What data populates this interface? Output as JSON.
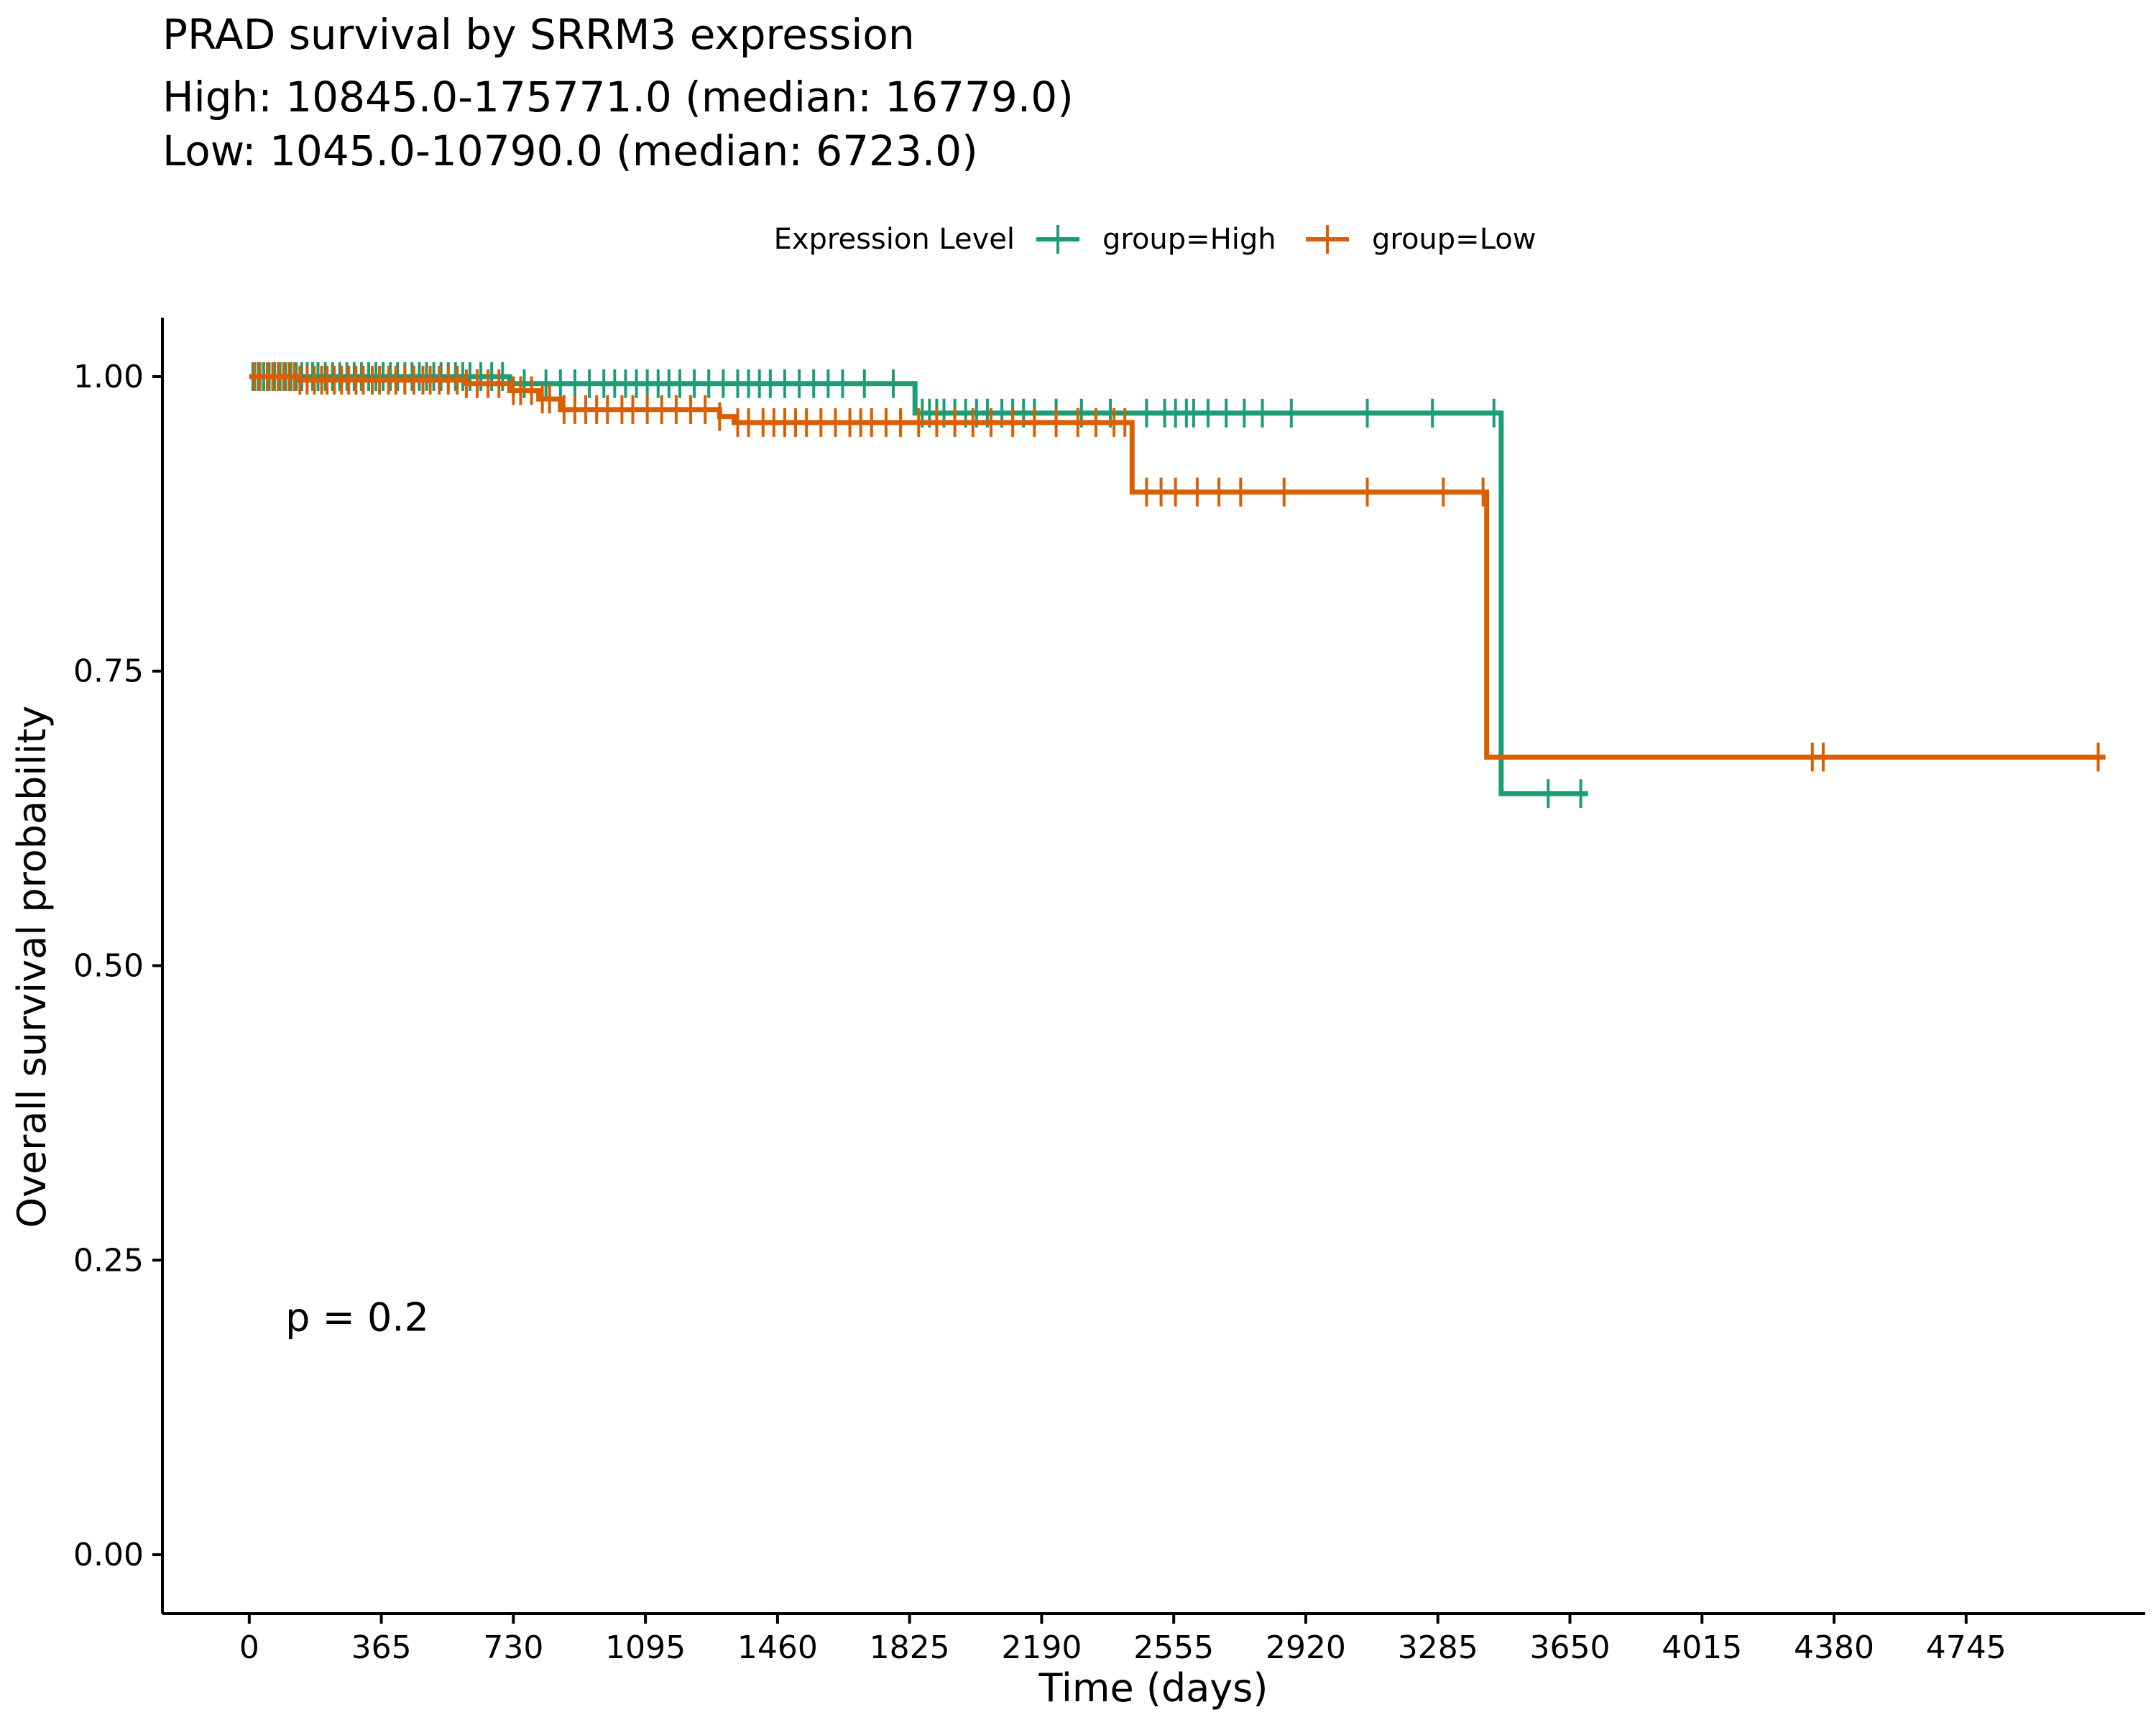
{
  "chart_data": {
    "type": "line",
    "title": "PRAD survival by SRRM3 expression",
    "subtitle_lines": [
      "High: 10845.0-175771.0 (median: 16779.0)",
      "Low: 1045.0-10790.0 (median: 6723.0)"
    ],
    "xlabel": "Time (days)",
    "ylabel": "Overall survival probability",
    "xlim": [
      -240,
      5240
    ],
    "ylim": [
      -0.05,
      1.05
    ],
    "x_ticks": [
      0,
      365,
      730,
      1095,
      1460,
      1825,
      2190,
      2555,
      2920,
      3285,
      3650,
      4015,
      4380,
      4745
    ],
    "y_ticks": [
      0.0,
      0.25,
      0.5,
      0.75,
      1.0
    ],
    "y_tick_labels": [
      "0.00",
      "0.25",
      "0.50",
      "0.75",
      "1.00"
    ],
    "legend": {
      "title": "Expression Level",
      "placement": "top"
    },
    "annotation": "p = 0.2",
    "annotation_pos": {
      "x": 100,
      "y": 0.19
    },
    "grid": false,
    "series": [
      {
        "name": "group=High",
        "color": "#1b9e77",
        "steps": [
          [
            0,
            1.0
          ],
          [
            720,
            0.994
          ],
          [
            1840,
            0.969
          ],
          [
            3460,
            0.646
          ],
          [
            3700,
            0.646
          ]
        ],
        "censors": [
          10,
          25,
          40,
          55,
          70,
          85,
          100,
          115,
          130,
          145,
          160,
          175,
          190,
          210,
          230,
          250,
          270,
          290,
          310,
          330,
          350,
          370,
          390,
          410,
          430,
          450,
          470,
          490,
          510,
          530,
          550,
          570,
          590,
          610,
          640,
          670,
          700,
          760,
          820,
          860,
          900,
          940,
          980,
          1010,
          1040,
          1070,
          1100,
          1130,
          1160,
          1190,
          1230,
          1270,
          1310,
          1350,
          1380,
          1410,
          1440,
          1480,
          1520,
          1560,
          1600,
          1640,
          1700,
          1780,
          1860,
          1880,
          1900,
          1920,
          1950,
          1980,
          2010,
          2040,
          2080,
          2110,
          2140,
          2170,
          2230,
          2300,
          2380,
          2480,
          2530,
          2560,
          2590,
          2610,
          2650,
          2700,
          2750,
          2800,
          2880,
          3090,
          3270,
          3440,
          3590,
          3680
        ]
      },
      {
        "name": "group=Low",
        "color": "#d95f02",
        "steps": [
          [
            0,
            1.0
          ],
          [
            140,
            0.997
          ],
          [
            600,
            0.994
          ],
          [
            720,
            0.988
          ],
          [
            800,
            0.981
          ],
          [
            860,
            0.972
          ],
          [
            1300,
            0.966
          ],
          [
            1340,
            0.961
          ],
          [
            2440,
            0.902
          ],
          [
            3420,
            0.677
          ],
          [
            5130,
            0.677
          ]
        ],
        "censors": [
          15,
          30,
          50,
          65,
          80,
          95,
          110,
          125,
          140,
          160,
          180,
          200,
          215,
          235,
          255,
          275,
          295,
          315,
          340,
          360,
          385,
          405,
          430,
          455,
          480,
          500,
          525,
          550,
          575,
          600,
          630,
          660,
          690,
          730,
          750,
          780,
          810,
          830,
          870,
          900,
          930,
          960,
          990,
          1030,
          1060,
          1100,
          1140,
          1180,
          1220,
          1260,
          1300,
          1350,
          1380,
          1420,
          1450,
          1480,
          1510,
          1540,
          1580,
          1620,
          1660,
          1690,
          1720,
          1760,
          1800,
          1850,
          1900,
          1950,
          2000,
          2050,
          2110,
          2170,
          2230,
          2290,
          2340,
          2390,
          2420,
          2480,
          2520,
          2560,
          2620,
          2680,
          2740,
          2860,
          3090,
          3300,
          3410,
          4320,
          4350,
          5110
        ]
      }
    ]
  }
}
